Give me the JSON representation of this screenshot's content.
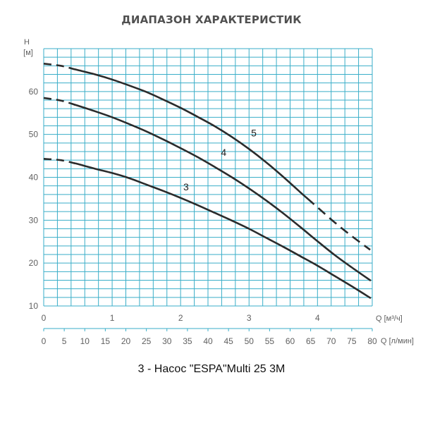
{
  "title": "ДИАПАЗОН ХАРАКТЕРИСТИК",
  "caption": "3 - Насос \"ESPA\"Multi 25 3M",
  "chart_data": {
    "type": "line",
    "title": "ДИАПАЗОН ХАРАКТЕРИСТИК",
    "ylabel_top": "H",
    "ylabel_unit": "[м]",
    "xlabel_m3": "Q [м³/ч]",
    "xlabel_lmin": "Q [л/мин]",
    "ylim": [
      10,
      70
    ],
    "xlim_m3": [
      0,
      4.8
    ],
    "xlim_lmin": [
      0,
      80
    ],
    "grid": true,
    "colors": {
      "grid": "#3aaec8",
      "curve": "#2b2b2b",
      "text": "#606060"
    },
    "y_ticks": [
      "10",
      "20",
      "30",
      "40",
      "50",
      "60"
    ],
    "x_ticks_m3": [
      "0",
      "1",
      "2",
      "3",
      "4"
    ],
    "x_ticks_lmin": [
      "0",
      "5",
      "10",
      "15",
      "20",
      "25",
      "30",
      "35",
      "40",
      "45",
      "50",
      "55",
      "60",
      "65",
      "70",
      "75",
      "80"
    ],
    "series": [
      {
        "name": "3",
        "x": [
          0,
          0.25,
          0.5,
          0.75,
          1.0,
          1.25,
          1.5,
          1.75,
          2.0,
          2.25,
          2.5,
          2.75,
          3.0,
          3.25,
          3.5,
          3.75,
          4.0,
          4.25,
          4.5,
          4.77
        ],
        "y": [
          44.3,
          44.0,
          43.1,
          42.0,
          41.0,
          39.8,
          38.3,
          36.8,
          35.2,
          33.5,
          31.7,
          29.9,
          28.0,
          25.9,
          23.8,
          21.6,
          19.4,
          17.0,
          14.6,
          11.9
        ],
        "dashed_until": 0.45,
        "dashed_after": null
      },
      {
        "name": "4",
        "x": [
          0,
          0.25,
          0.5,
          0.75,
          1.0,
          1.25,
          1.5,
          1.75,
          2.0,
          2.25,
          2.5,
          2.75,
          3.0,
          3.25,
          3.5,
          3.75,
          4.0,
          4.25,
          4.5,
          4.77
        ],
        "y": [
          58.5,
          57.9,
          56.7,
          55.4,
          54.0,
          52.4,
          50.7,
          48.8,
          46.8,
          44.7,
          42.4,
          40.0,
          37.4,
          34.6,
          31.6,
          28.4,
          25.1,
          21.9,
          19.0,
          16.0
        ],
        "dashed_until": 0.45,
        "dashed_after": null
      },
      {
        "name": "5",
        "x": [
          0,
          0.25,
          0.5,
          0.75,
          1.0,
          1.25,
          1.5,
          1.75,
          2.0,
          2.25,
          2.5,
          2.75,
          3.0,
          3.25,
          3.5,
          3.75,
          4.0,
          4.25,
          4.5,
          4.77
        ],
        "y": [
          66.5,
          66.0,
          65.0,
          64.0,
          62.8,
          61.4,
          59.9,
          58.1,
          56.2,
          54.1,
          51.9,
          49.4,
          46.6,
          43.5,
          40.1,
          36.5,
          33.0,
          29.5,
          26.3,
          23.1
        ],
        "dashed_until": 0.45,
        "dashed_after": 3.85
      }
    ],
    "curve_label_positions": [
      {
        "name": "3",
        "x": 2.08,
        "y": 37.0
      },
      {
        "name": "4",
        "x": 2.63,
        "y": 45.0
      },
      {
        "name": "5",
        "x": 3.07,
        "y": 49.5
      }
    ]
  }
}
